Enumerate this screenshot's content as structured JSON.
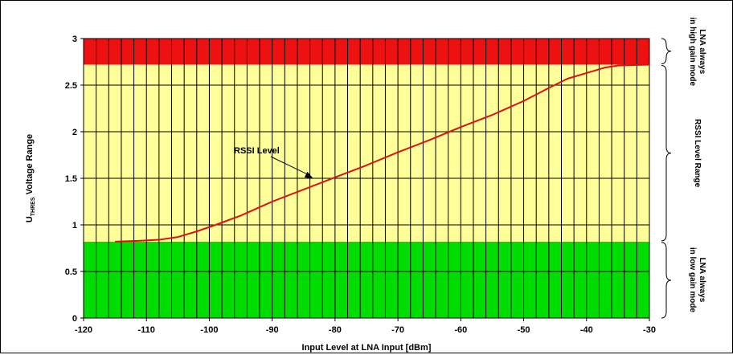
{
  "chart_data": {
    "type": "line",
    "xlabel": "Input Level at LNA Input [dBm]",
    "ylabel_main": "U",
    "ylabel_sub": "THRES",
    "ylabel_rest": " Voltage Range",
    "xlim": [
      -120,
      -30
    ],
    "ylim": [
      0,
      3
    ],
    "x_ticks": [
      "-120",
      "-110",
      "-100",
      "-90",
      "-80",
      "-70",
      "-60",
      "-50",
      "-40",
      "-30"
    ],
    "y_ticks": [
      "0",
      "0.5",
      "1",
      "1.5",
      "2",
      "2.5",
      "3"
    ],
    "grid": true,
    "bands": [
      {
        "name": "LNA always in low gain mode",
        "from": 0,
        "to": 0.82,
        "color": "#00dd00"
      },
      {
        "name": "RSSI Level Range",
        "from": 0.82,
        "to": 2.72,
        "color": "#ffff99"
      },
      {
        "name": "LNA always in high gain mode",
        "from": 2.72,
        "to": 3.0,
        "color": "#ee1111"
      }
    ],
    "series": [
      {
        "name": "RSSI Level",
        "color": "#dd1111",
        "x": [
          -115,
          -111,
          -108,
          -105,
          -102,
          -99,
          -95,
          -90,
          -85,
          -80,
          -75,
          -70,
          -65,
          -60,
          -55,
          -50,
          -46,
          -43,
          -40,
          -37,
          -35,
          -30
        ],
        "y": [
          0.82,
          0.83,
          0.84,
          0.87,
          0.93,
          1.0,
          1.1,
          1.25,
          1.38,
          1.51,
          1.64,
          1.78,
          1.91,
          2.05,
          2.18,
          2.33,
          2.47,
          2.57,
          2.63,
          2.69,
          2.71,
          2.72
        ]
      }
    ],
    "annotation": {
      "text": "RSSI Level",
      "x": -83.5,
      "y": 1.5
    },
    "side_labels": [
      {
        "line1": "LNA always",
        "line2": "in high gain mode"
      },
      {
        "line1": "RSSI Level  Range",
        "line2": ""
      },
      {
        "line1": "LNA always",
        "line2": "in low gain mode"
      }
    ]
  }
}
